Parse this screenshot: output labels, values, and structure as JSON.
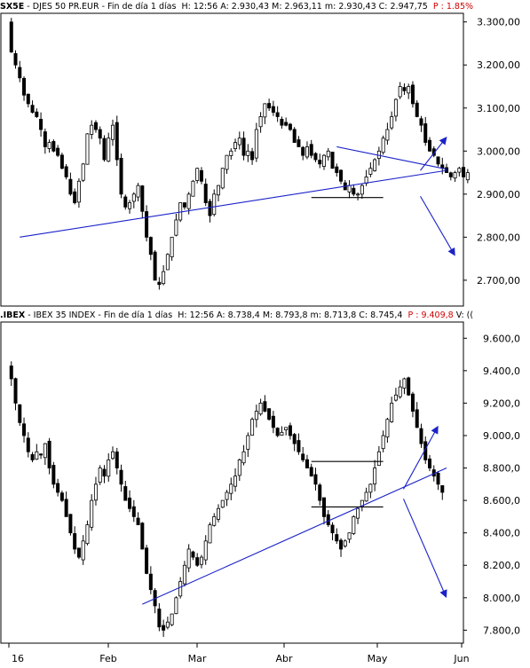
{
  "colors": {
    "candle": "#000000",
    "trendline": "#1a22c8",
    "arrow": "#1a22c8",
    "border": "#000000",
    "percent_text": "#d00000"
  },
  "top_header": {
    "symbol": "SX5E",
    "description": " - DJES 50 PR.EUR - Fin de día 1 días",
    "fields": "H: 12:56  A: 2.930,43  M: 2.963,11  m: 2.930,43  C: 2.947,75",
    "percent": "P : 1.85%"
  },
  "bottom_header": {
    "symbol": ".IBEX",
    "description": " - IBEX 35 INDEX - Fin de día 1 días",
    "fields": "H: 12:56  A: 8.738,4  M: 8.793,8  m: 8.713,8  C: 8.745,4",
    "percent": "P : 9.409,8",
    "extra": " V: (("
  },
  "x_axis": {
    "labels": [
      "16",
      "Feb",
      "Mar",
      "Abr",
      "May",
      "Jun"
    ]
  },
  "chart_data": [
    {
      "type": "candlestick",
      "title": "SX5E - DJES 50 PR.EUR",
      "y_ticks": [
        "3.300,00",
        "3.200,00",
        "3.100,00",
        "3.000,00",
        "2.900,00",
        "2.800,00",
        "2.700,00"
      ],
      "ylim": [
        2640,
        3320
      ],
      "trendlines": [
        {
          "kind": "support",
          "from": [
            3,
            2800
          ],
          "to": [
            104,
            2955
          ]
        },
        {
          "kind": "triangle-upper",
          "from": [
            78,
            3010
          ],
          "to": [
            104,
            2958
          ]
        },
        {
          "kind": "horizontal",
          "from": [
            72,
            2892
          ],
          "to": [
            89,
            2892
          ]
        }
      ],
      "arrows": [
        {
          "direction": "up",
          "to": [
            87,
            3030
          ]
        },
        {
          "direction": "down",
          "to": [
            89,
            2760
          ]
        }
      ],
      "ohlc_close_path": [
        3300,
        3230,
        3200,
        3170,
        3130,
        3110,
        3090,
        3080,
        3050,
        3010,
        3020,
        3000,
        2990,
        2960,
        2940,
        2900,
        2880,
        2930,
        2970,
        3040,
        3060,
        3050,
        3030,
        2980,
        3030,
        3060,
        2980,
        2900,
        2870,
        2880,
        2900,
        2920,
        2860,
        2800,
        2760,
        2700,
        2690,
        2720,
        2760,
        2800,
        2840,
        2880,
        2870,
        2900,
        2930,
        2960,
        2930,
        2880,
        2850,
        2900,
        2920,
        2960,
        2990,
        3000,
        3020,
        3030,
        2990,
        3000,
        2980,
        3050,
        3080,
        3110,
        3100,
        3090,
        3080,
        3060,
        3060,
        3050,
        3020,
        3010,
        2990,
        3010,
        2990,
        2980,
        2970,
        2990,
        3000,
        2960,
        2950,
        2930,
        2910,
        2920,
        2900,
        2900,
        2920,
        2940,
        2960,
        2980,
        3000,
        3030,
        3050,
        3080,
        3120,
        3150,
        3140,
        3150,
        3110,
        3080,
        3060,
        3020,
        3000,
        2990,
        2970,
        2960,
        2950,
        2940,
        2950,
        2960,
        2940,
        2950
      ]
    },
    {
      "type": "candlestick",
      "title": ".IBEX - IBEX 35 INDEX",
      "y_ticks": [
        "9.600,0",
        "9.400,0",
        "9.200,0",
        "9.000,0",
        "8.800,0",
        "8.600,0",
        "8.400,0",
        "8.200,0",
        "8.000,0",
        "7.800,0"
      ],
      "ylim": [
        7720,
        9700
      ],
      "trendlines": [
        {
          "kind": "support",
          "from": [
            32,
            7960
          ],
          "to": [
            104,
            8800
          ]
        },
        {
          "kind": "range-top",
          "from": [
            72,
            8840
          ],
          "to": [
            89,
            8840
          ]
        },
        {
          "kind": "range-bottom",
          "from": [
            72,
            8560
          ],
          "to": [
            89,
            8560
          ]
        }
      ],
      "arrows": [
        {
          "direction": "up",
          "to": [
            85,
            9050
          ]
        },
        {
          "direction": "down",
          "to": [
            87,
            8010
          ]
        }
      ],
      "ohlc_close_path": [
        9420,
        9350,
        9200,
        9080,
        9000,
        8900,
        8850,
        8900,
        8880,
        8950,
        8800,
        8700,
        8650,
        8600,
        8500,
        8400,
        8300,
        8250,
        8350,
        8450,
        8600,
        8700,
        8800,
        8750,
        8850,
        8900,
        8800,
        8700,
        8600,
        8550,
        8500,
        8450,
        8300,
        8150,
        8050,
        7950,
        7820,
        7800,
        7850,
        7900,
        8000,
        8100,
        8200,
        8300,
        8250,
        8200,
        8250,
        8350,
        8450,
        8500,
        8550,
        8600,
        8650,
        8700,
        8750,
        8850,
        8900,
        9000,
        9100,
        9150,
        9200,
        9150,
        9100,
        9050,
        9000,
        9020,
        9050,
        9000,
        8950,
        8900,
        8850,
        8800,
        8750,
        8700,
        8600,
        8500,
        8450,
        8400,
        8350,
        8300,
        8350,
        8400,
        8500,
        8550,
        8600,
        8650,
        8700,
        8800,
        8900,
        9000,
        9100,
        9200,
        9250,
        9300,
        9350,
        9250,
        9150,
        9050,
        8950,
        8850,
        8800,
        8750,
        8700,
        8650
      ]
    }
  ]
}
